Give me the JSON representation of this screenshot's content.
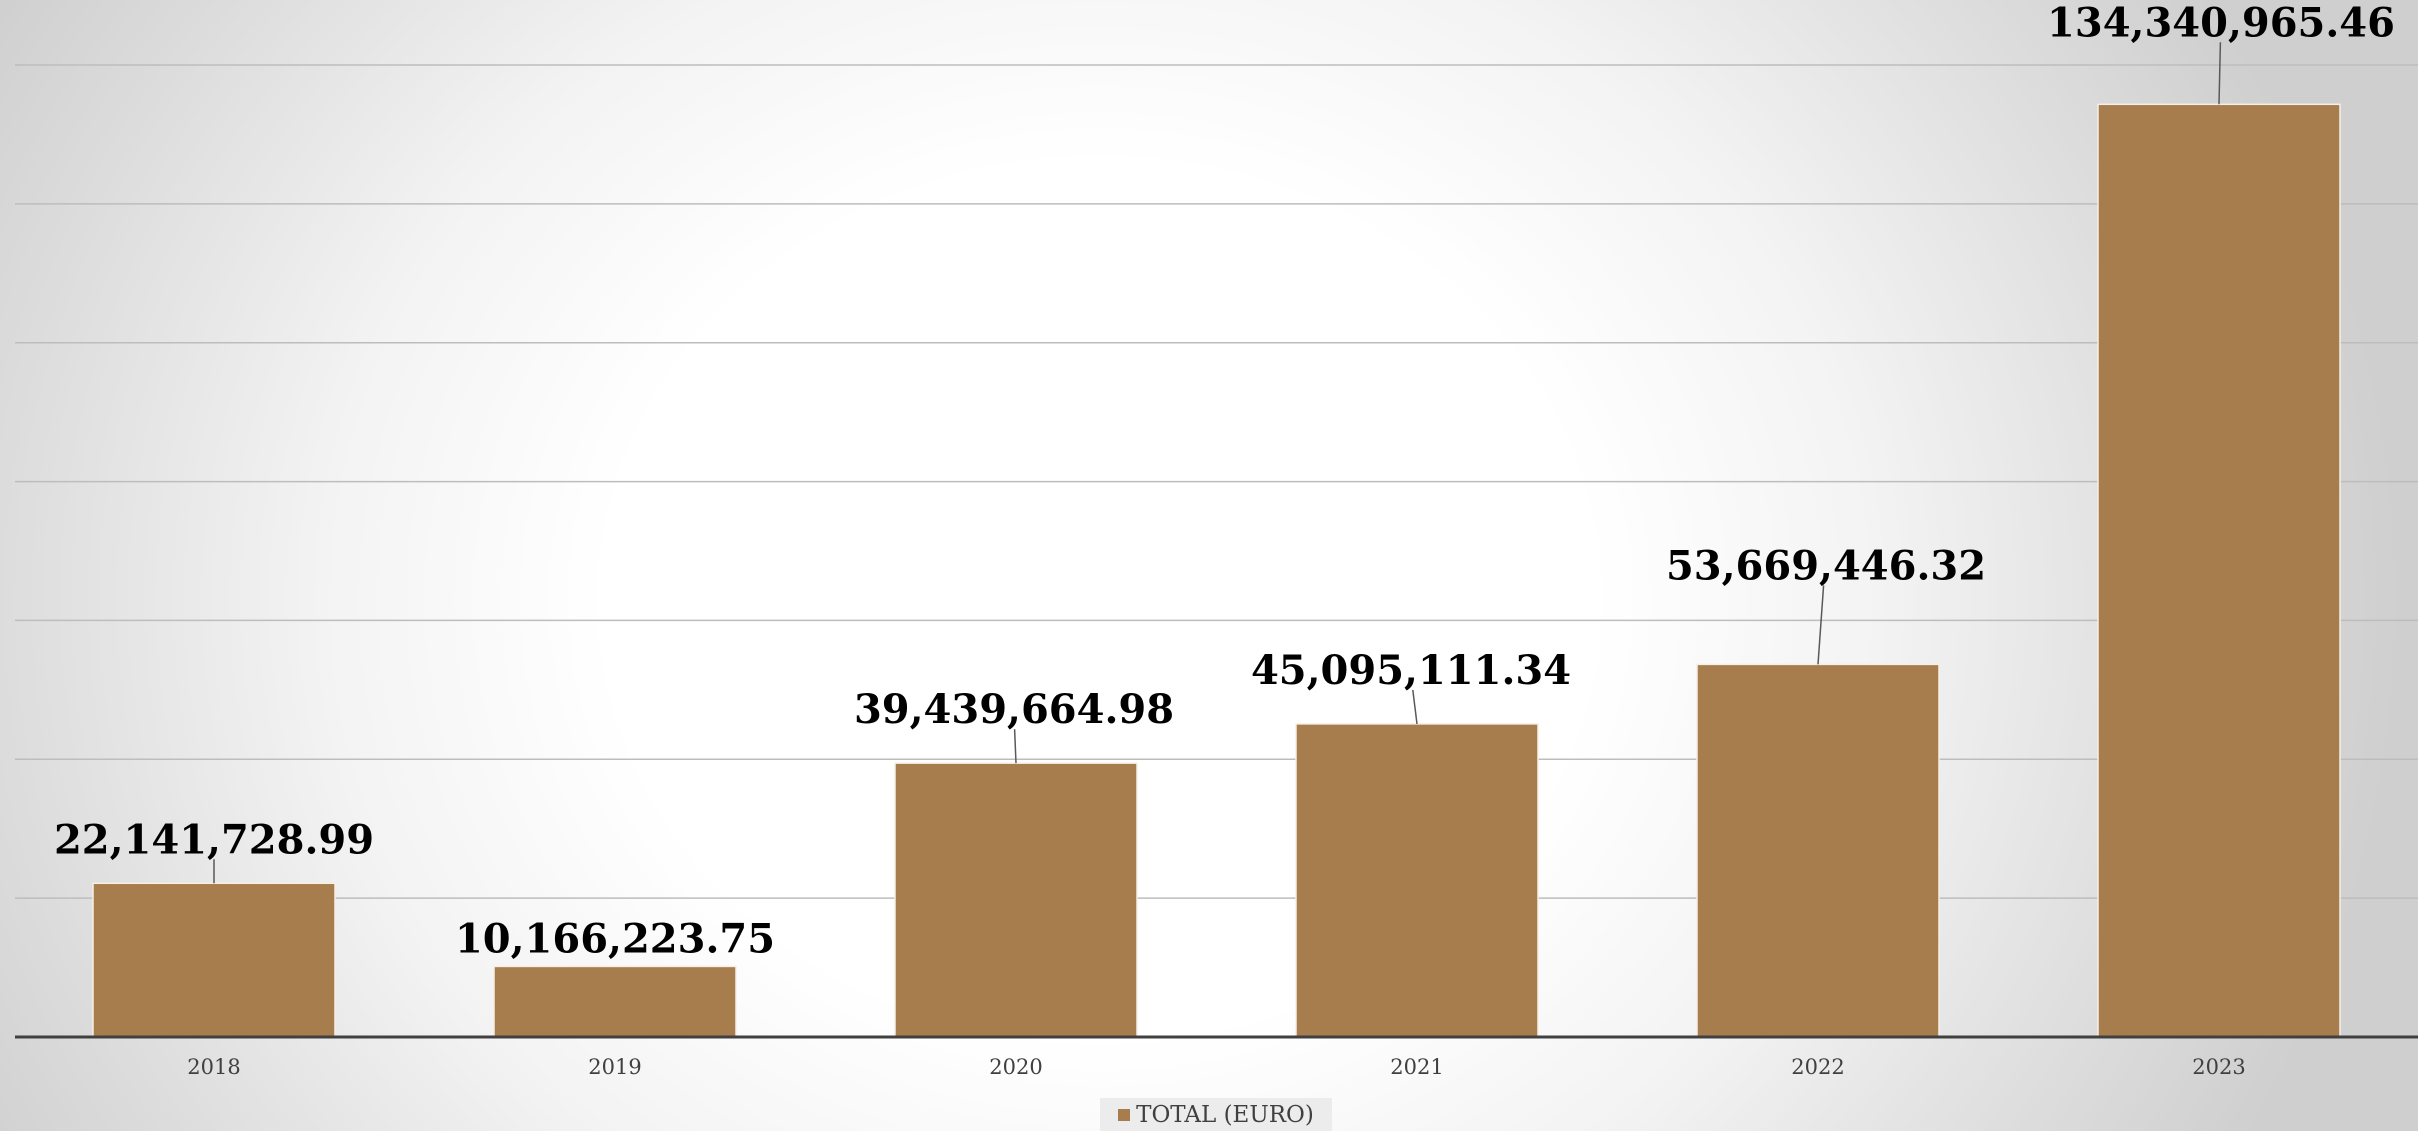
{
  "chart_data": {
    "type": "bar",
    "categories": [
      "2018",
      "2019",
      "2020",
      "2021",
      "2022",
      "2023"
    ],
    "series": [
      {
        "name": "TOTAL (EURO)",
        "values": [
          22141728.99,
          10166223.75,
          39439664.98,
          45095111.34,
          53669446.32,
          134340965.46
        ]
      }
    ],
    "data_labels": [
      "22,141,728.99",
      "10,166,223.75",
      "39,439,664.98",
      "45,095,111.34",
      "53,669,446.32",
      "134,340,965.46"
    ],
    "ylim": [
      0,
      140000000
    ],
    "y_gridline_step": 20000000,
    "grid": true,
    "legend_position": "bottom",
    "colors": {
      "bar": "#a87d4e",
      "bar_edge": "#f5efe6",
      "grid": "#bdbdbd",
      "axis": "#404040",
      "label": "#000000"
    },
    "title": "",
    "xlabel": "",
    "ylabel": ""
  }
}
